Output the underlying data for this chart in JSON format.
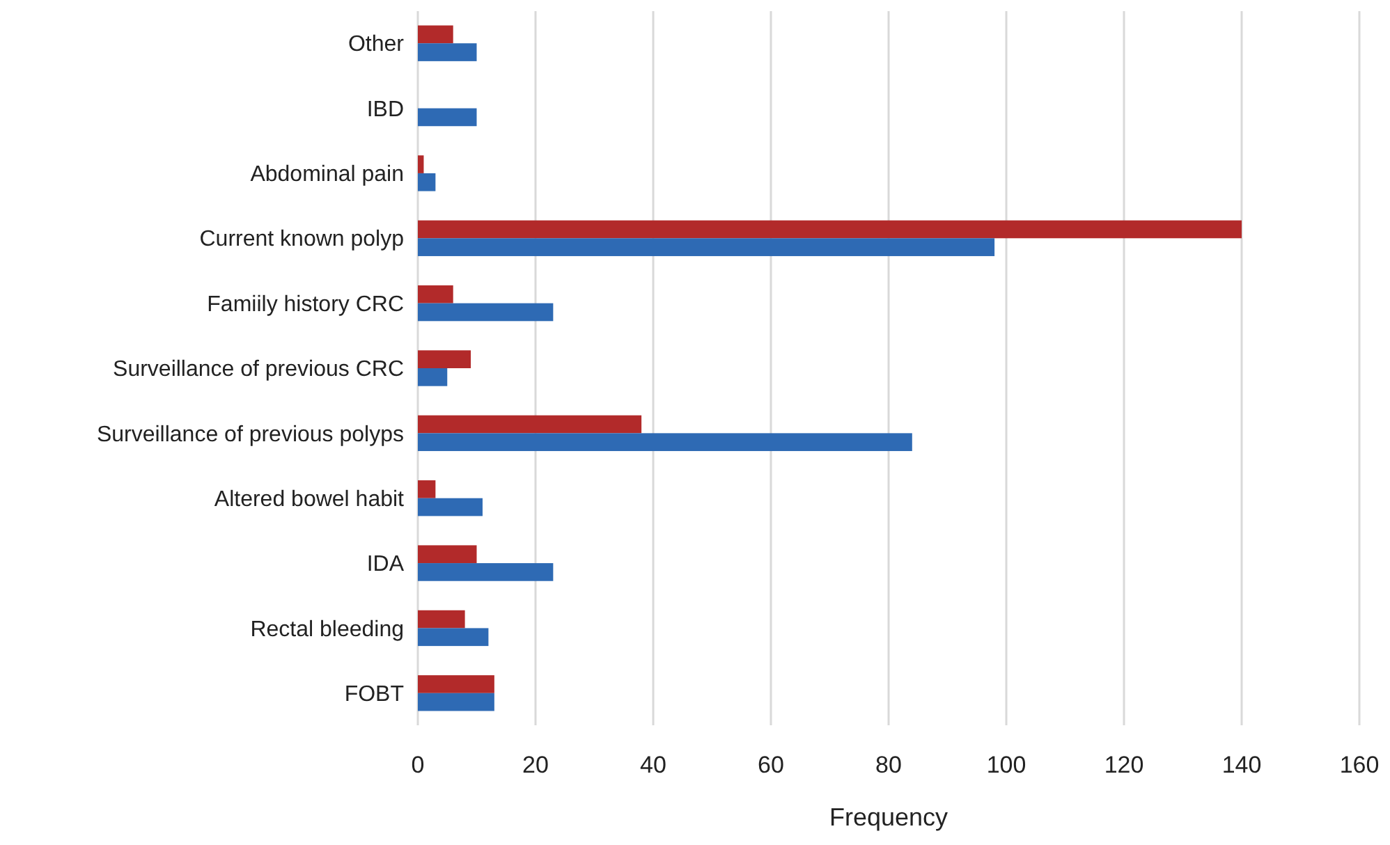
{
  "chart_data": {
    "type": "bar",
    "orientation": "horizontal",
    "xlabel": "Frequency",
    "categories": [
      "Other",
      "IBD",
      "Abdominal pain",
      "Current known polyp",
      "Famiily history CRC",
      "Surveillance of previous CRC",
      "Surveillance of previous polyps",
      "Altered bowel habit",
      "IDA",
      "Rectal bleeding",
      "FOBT"
    ],
    "series": [
      {
        "color": "#b22a2a",
        "values": [
          6,
          0,
          1,
          140,
          6,
          9,
          38,
          3,
          10,
          8,
          13
        ]
      },
      {
        "color": "#2e6ab4",
        "values": [
          10,
          10,
          3,
          98,
          23,
          5,
          84,
          11,
          23,
          12,
          13
        ]
      }
    ],
    "xlim": [
      0,
      160
    ],
    "xticks": [
      0,
      20,
      40,
      60,
      80,
      100,
      120,
      140,
      160
    ],
    "grid": "x"
  }
}
